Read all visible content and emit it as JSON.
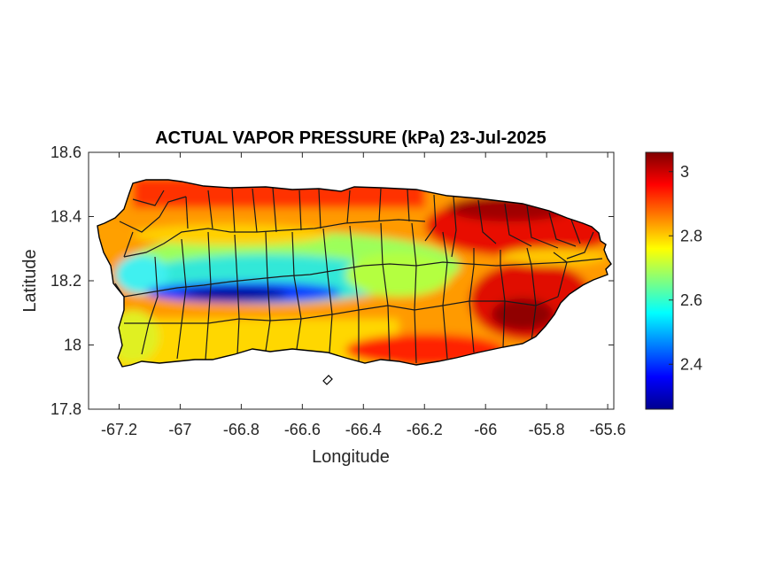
{
  "figure": {
    "title": "ACTUAL VAPOR PRESSURE (kPa) 23-Jul-2025",
    "xlabel": "Longitude",
    "ylabel": "Latitude"
  },
  "axes": {
    "xlim": [
      -67.3,
      -65.58
    ],
    "ylim": [
      17.8,
      18.6
    ],
    "xticks": [
      -67.2,
      -67,
      -66.8,
      -66.6,
      -66.4,
      -66.2,
      -66,
      -65.8,
      -65.6
    ],
    "xtick_labels": [
      "-67.2",
      "-67",
      "-66.8",
      "-66.6",
      "-66.4",
      "-66.2",
      "-66",
      "-65.8",
      "-65.6"
    ],
    "yticks": [
      17.8,
      18,
      18.2,
      18.4,
      18.6
    ],
    "ytick_labels": [
      "17.8",
      "18",
      "18.2",
      "18.4",
      "18.6"
    ],
    "grid": false
  },
  "colorbar": {
    "colormap": "jet",
    "range": [
      2.26,
      3.06
    ],
    "ticks": [
      2.4,
      2.6,
      2.8,
      3.0
    ],
    "tick_labels": [
      "2.4",
      "2.6",
      "2.8",
      "3"
    ],
    "placement": "right"
  },
  "chart_data": {
    "type": "heatmap",
    "title": "ACTUAL VAPOR PRESSURE (kPa) 23-Jul-2025",
    "xlabel": "Longitude",
    "ylabel": "Latitude",
    "units": "kPa",
    "xlim": [
      -67.3,
      -65.58
    ],
    "ylim": [
      17.8,
      18.6
    ],
    "colorbar_range": [
      2.26,
      3.06
    ],
    "region_values": [
      {
        "lon": -65.85,
        "lat": 18.35,
        "value": 3.02
      },
      {
        "lon": -65.95,
        "lat": 18.4,
        "value": 3.0
      },
      {
        "lon": -65.88,
        "lat": 18.08,
        "value": 3.03
      },
      {
        "lon": -65.98,
        "lat": 18.15,
        "value": 2.95
      },
      {
        "lon": -66.15,
        "lat": 18.45,
        "value": 2.95
      },
      {
        "lon": -66.6,
        "lat": 18.46,
        "value": 2.93
      },
      {
        "lon": -66.9,
        "lat": 18.47,
        "value": 2.92
      },
      {
        "lon": -67.15,
        "lat": 18.38,
        "value": 2.85
      },
      {
        "lon": -66.9,
        "lat": 18.35,
        "value": 2.77
      },
      {
        "lon": -66.7,
        "lat": 18.28,
        "value": 2.63
      },
      {
        "lon": -66.8,
        "lat": 18.2,
        "value": 2.55
      },
      {
        "lon": -66.85,
        "lat": 18.15,
        "value": 2.3
      },
      {
        "lon": -66.6,
        "lat": 18.17,
        "value": 2.36
      },
      {
        "lon": -67.15,
        "lat": 18.2,
        "value": 2.6
      },
      {
        "lon": -66.3,
        "lat": 18.25,
        "value": 2.7
      },
      {
        "lon": -66.5,
        "lat": 18.35,
        "value": 2.72
      },
      {
        "lon": -66.85,
        "lat": 18.05,
        "value": 2.75
      },
      {
        "lon": -66.55,
        "lat": 18.02,
        "value": 2.86
      },
      {
        "lon": -66.3,
        "lat": 18.0,
        "value": 2.93
      },
      {
        "lon": -67.15,
        "lat": 18.0,
        "value": 2.78
      },
      {
        "lon": -65.72,
        "lat": 18.25,
        "value": 2.92
      }
    ]
  }
}
